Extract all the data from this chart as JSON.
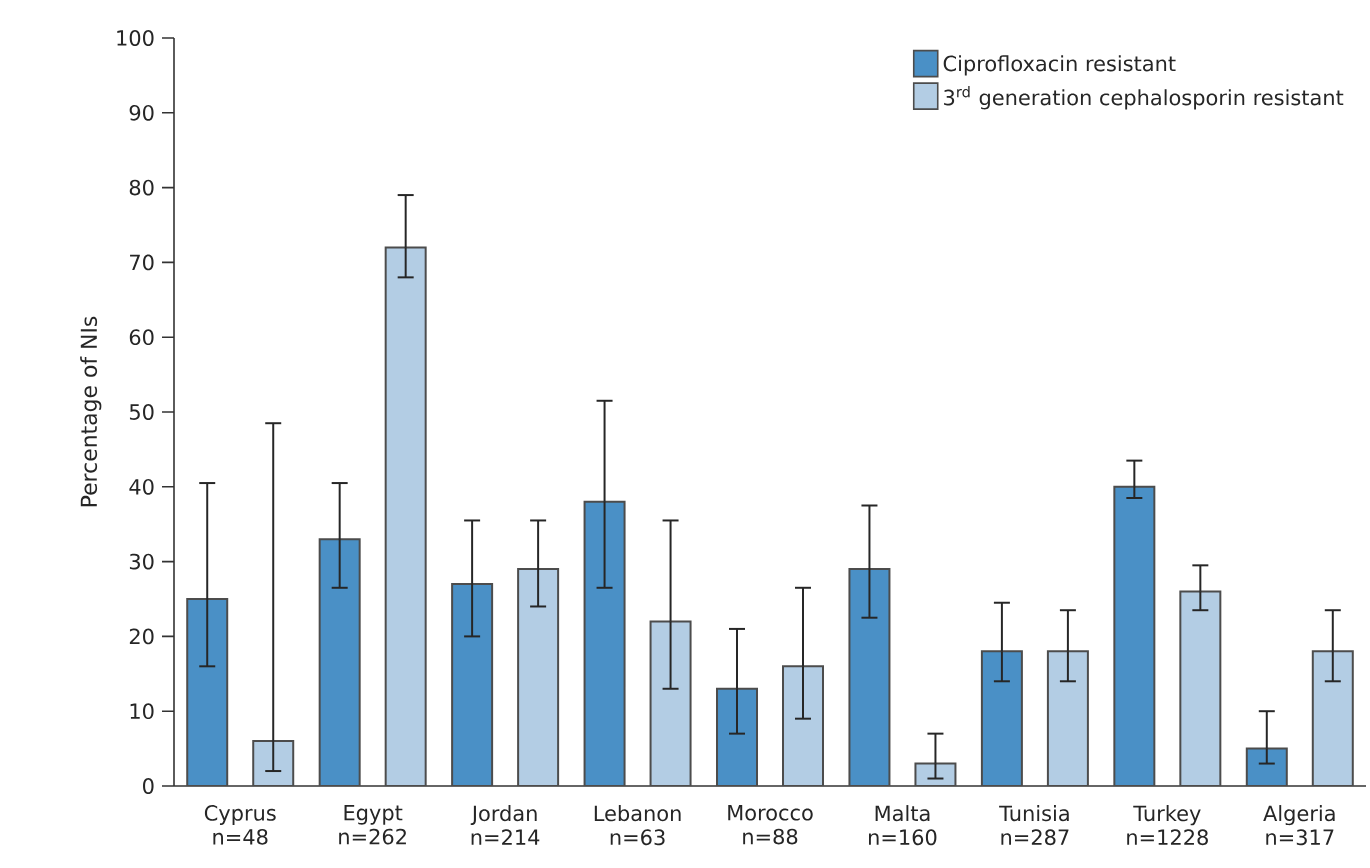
{
  "chart_data": {
    "type": "bar",
    "ylabel": "Percentage of NIs",
    "categories": [
      "Cyprus n=48",
      "Egypt n=262",
      "Jordan n=214",
      "Lebanon n=63",
      "Morocco n=88",
      "Malta n=160",
      "Tunisia n=287",
      "Turkey n=1228",
      "Algeria n=317"
    ],
    "series": [
      {
        "name": "Ciprofloxacin resistant",
        "color": "#4a90c6",
        "values": [
          25,
          33,
          27,
          38,
          13,
          29,
          18,
          40,
          5
        ],
        "errors": [
          [
            16,
            40.5
          ],
          [
            26.5,
            40.5
          ],
          [
            20,
            35.5
          ],
          [
            26.5,
            51.5
          ],
          [
            7,
            21
          ],
          [
            22.5,
            37.5
          ],
          [
            14,
            24.5
          ],
          [
            38.5,
            43.5
          ],
          [
            3,
            10
          ]
        ]
      },
      {
        "name": "3$^{rd}$ generation cephalosporin resistant",
        "color": "#b3cde4",
        "values": [
          6,
          72,
          29,
          22,
          16,
          3,
          18,
          26,
          18
        ],
        "errors": [
          [
            2,
            48.5
          ],
          [
            68,
            79
          ],
          [
            24,
            35.5
          ],
          [
            13,
            35.5
          ],
          [
            9,
            26.5
          ],
          [
            1,
            7
          ],
          [
            14,
            23.5
          ],
          [
            23.5,
            29.5
          ],
          [
            14,
            23.5
          ]
        ]
      }
    ],
    "ylim": [
      0,
      100
    ],
    "yticks": [
      0,
      10,
      20,
      30,
      40,
      50,
      60,
      70,
      80,
      90,
      100
    ],
    "legend": "top right"
  }
}
